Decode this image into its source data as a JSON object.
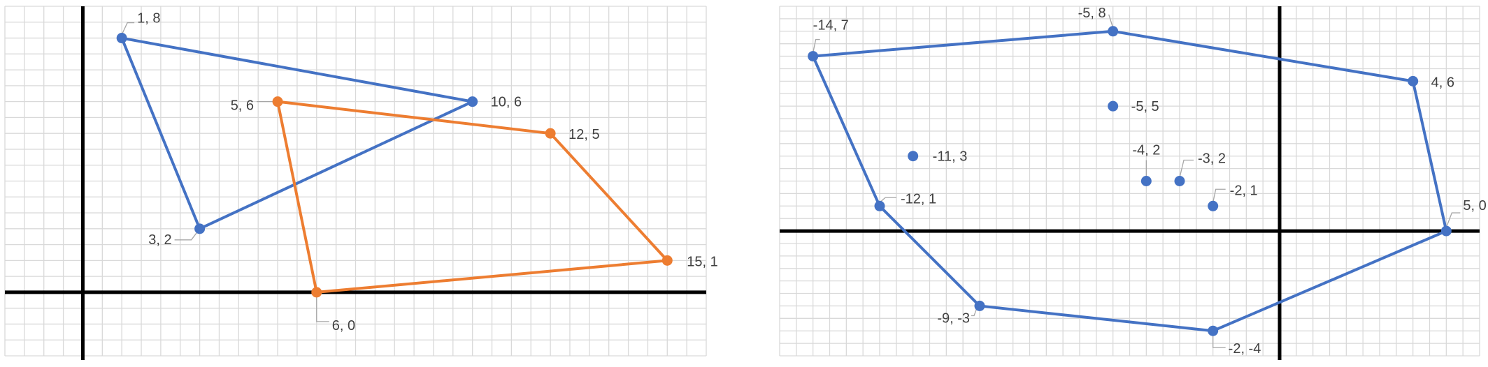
{
  "charts": {
    "colors": {
      "blue": "#4472C4",
      "orange": "#ED7D31"
    },
    "chart_data": [
      {
        "type": "scatter",
        "xlim": [
          -2,
          16
        ],
        "ylim": [
          -2,
          9
        ],
        "grid": true,
        "series": [
          {
            "color": "#4472C4",
            "closed": true,
            "points": [
              {
                "x": 1,
                "y": 8,
                "label": "1, 8"
              },
              {
                "x": 10,
                "y": 6,
                "label": "10, 6"
              },
              {
                "x": 3,
                "y": 2,
                "label": "3, 2"
              }
            ]
          },
          {
            "color": "#ED7D31",
            "closed": true,
            "points": [
              {
                "x": 5,
                "y": 6,
                "label": "5, 6"
              },
              {
                "x": 12,
                "y": 5,
                "label": "12, 5"
              },
              {
                "x": 15,
                "y": 1,
                "label": "15, 1"
              },
              {
                "x": 6,
                "y": 0,
                "label": "6, 0"
              }
            ]
          }
        ]
      },
      {
        "type": "scatter",
        "xlim": [
          -15,
          6
        ],
        "ylim": [
          -5,
          9
        ],
        "grid": true,
        "series": [
          {
            "color": "#4472C4",
            "closed": true,
            "points": [
              {
                "x": -14,
                "y": 7,
                "label": "-14, 7"
              },
              {
                "x": -5,
                "y": 8,
                "label": "-5, 8"
              },
              {
                "x": 4,
                "y": 6,
                "label": "4, 6"
              },
              {
                "x": 5,
                "y": 0,
                "label": "5, 0"
              },
              {
                "x": -2,
                "y": -4,
                "label": "-2, -4"
              },
              {
                "x": -9,
                "y": -3,
                "label": "-9, -3"
              },
              {
                "x": -12,
                "y": 1,
                "label": "-12, 1"
              }
            ]
          },
          {
            "color": "#4472C4",
            "closed": false,
            "markers_only": true,
            "points": [
              {
                "x": -5,
                "y": 5,
                "label": "-5, 5"
              },
              {
                "x": -11,
                "y": 3,
                "label": "-11, 3"
              },
              {
                "x": -4,
                "y": 2,
                "label": "-4, 2"
              },
              {
                "x": -3,
                "y": 2,
                "label": "-3, 2"
              },
              {
                "x": -2,
                "y": 1,
                "label": "-2, 1"
              }
            ]
          }
        ]
      }
    ]
  }
}
